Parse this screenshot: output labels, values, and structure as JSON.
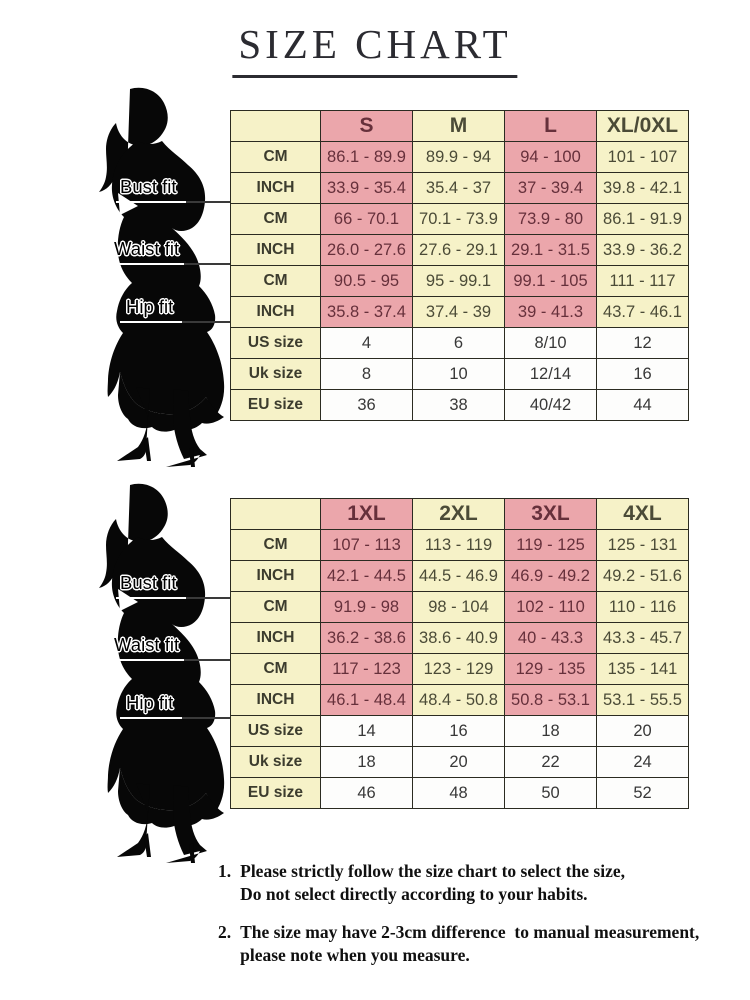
{
  "title": "SIZE CHART",
  "colors": {
    "pink": "#eba6ab",
    "cream": "#f6f2c8",
    "white_cell": "#fdfdfc",
    "border": "#2b2b21",
    "pink_text": "#66303b",
    "cream_text": "#4b4b37",
    "label_text": "#3c3c2e",
    "dark_text": "#383838",
    "figure": "#070707",
    "line": "#3a3a3a",
    "title": "#2b2b31",
    "note_text": "#101010"
  },
  "figures": [
    {
      "labels": [
        "Bust fit",
        "Waist fit",
        "Hip fit"
      ]
    },
    {
      "labels": [
        "Bust fit",
        "Waist fit",
        "Hip fit"
      ]
    }
  ],
  "tables": [
    {
      "name": "size-table-regular",
      "header": [
        "",
        "S",
        "M",
        "L",
        "XL/0XL"
      ],
      "rows": [
        {
          "label": "CM",
          "kind": "measure",
          "values": [
            "86.1 - 89.9",
            "89.9 - 94",
            "94 - 100",
            "101 - 107"
          ]
        },
        {
          "label": "INCH",
          "kind": "measure",
          "values": [
            "33.9 - 35.4",
            "35.4 - 37",
            "37 - 39.4",
            "39.8 - 42.1"
          ]
        },
        {
          "label": "CM",
          "kind": "measure",
          "values": [
            "66 - 70.1",
            "70.1 - 73.9",
            "73.9 - 80",
            "86.1 - 91.9"
          ]
        },
        {
          "label": "INCH",
          "kind": "measure",
          "values": [
            "26.0 - 27.6",
            "27.6 - 29.1",
            "29.1 - 31.5",
            "33.9 - 36.2"
          ]
        },
        {
          "label": "CM",
          "kind": "measure",
          "values": [
            "90.5 - 95",
            "95 - 99.1",
            "99.1 - 105",
            "111 - 117"
          ]
        },
        {
          "label": "INCH",
          "kind": "measure",
          "values": [
            "35.8 - 37.4",
            "37.4 - 39",
            "39 - 41.3",
            "43.7 - 46.1"
          ]
        },
        {
          "label": "US size",
          "kind": "size",
          "values": [
            "4",
            "6",
            "8/10",
            "12"
          ]
        },
        {
          "label": "Uk size",
          "kind": "size",
          "values": [
            "8",
            "10",
            "12/14",
            "16"
          ]
        },
        {
          "label": "EU size",
          "kind": "size",
          "values": [
            "36",
            "38",
            "40/42",
            "44"
          ]
        }
      ]
    },
    {
      "name": "size-table-plus",
      "header": [
        "",
        "1XL",
        "2XL",
        "3XL",
        "4XL"
      ],
      "rows": [
        {
          "label": "CM",
          "kind": "measure",
          "values": [
            "107 - 113",
            "113 - 119",
            "119 - 125",
            "125 - 131"
          ]
        },
        {
          "label": "INCH",
          "kind": "measure",
          "values": [
            "42.1 - 44.5",
            "44.5 - 46.9",
            "46.9 - 49.2",
            "49.2 - 51.6"
          ]
        },
        {
          "label": "CM",
          "kind": "measure",
          "values": [
            "91.9 - 98",
            "98 - 104",
            "102 - 110",
            "110 - 116"
          ]
        },
        {
          "label": "INCH",
          "kind": "measure",
          "values": [
            "36.2 - 38.6",
            "38.6 - 40.9",
            "40 - 43.3",
            "43.3 - 45.7"
          ]
        },
        {
          "label": "CM",
          "kind": "measure",
          "values": [
            "117 - 123",
            "123 - 129",
            "129 - 135",
            "135 - 141"
          ]
        },
        {
          "label": "INCH",
          "kind": "measure",
          "values": [
            "46.1 - 48.4",
            "48.4 - 50.8",
            "50.8 - 53.1",
            "53.1 - 55.5"
          ]
        },
        {
          "label": "US size",
          "kind": "size",
          "values": [
            "14",
            "16",
            "18",
            "20"
          ]
        },
        {
          "label": "Uk size",
          "kind": "size",
          "values": [
            "18",
            "20",
            "22",
            "24"
          ]
        },
        {
          "label": "EU size",
          "kind": "size",
          "values": [
            "46",
            "48",
            "50",
            "52"
          ]
        }
      ]
    }
  ],
  "notes": [
    {
      "number": "1.",
      "line1": "Please strictly follow the size chart to select the size,",
      "line2": "Do not select directly according to your habits."
    },
    {
      "number": "2.",
      "line1": "The size may have 2-3cm difference  to manual measurement,",
      "line2": "please note when you measure."
    }
  ]
}
